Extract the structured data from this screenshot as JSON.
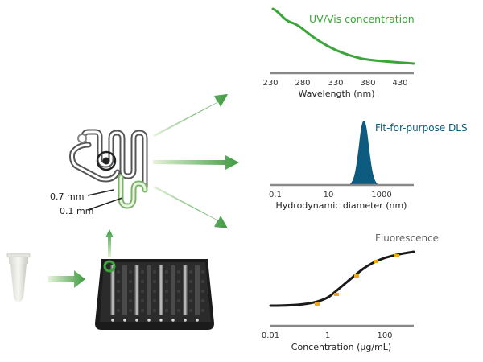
{
  "colors": {
    "uv_green": "#3aa63a",
    "dls_blue": "#0d5b7e",
    "fluor_gray": "#666666",
    "axis_gray": "#888888",
    "dot_orange": "#f2a81d",
    "arrow_light": "#d3ebc4",
    "arrow_dark": "#3f9a3f"
  },
  "chip": {
    "label_wide": "0.7 mm",
    "label_narrow": "0.1 mm"
  },
  "charts": {
    "uv": {
      "title": "UV/Vis concentration",
      "xlabel": "Wavelength (nm)",
      "ticks": [
        "230",
        "280",
        "330",
        "380",
        "430"
      ]
    },
    "dls": {
      "title": "Fit-for-purpose DLS",
      "xlabel": "Hydrodynamic diameter (nm)",
      "ticks": [
        "0.1",
        "10",
        "1000"
      ]
    },
    "fluor": {
      "title": "Fluorescence",
      "xlabel": "Concentration (μg/mL)",
      "ticks": [
        "0.01",
        "1",
        "100"
      ]
    }
  },
  "icons": {
    "tube": "sample-tube-icon",
    "plate": "well-plate-icon",
    "chip": "microfluidic-chip-icon"
  }
}
